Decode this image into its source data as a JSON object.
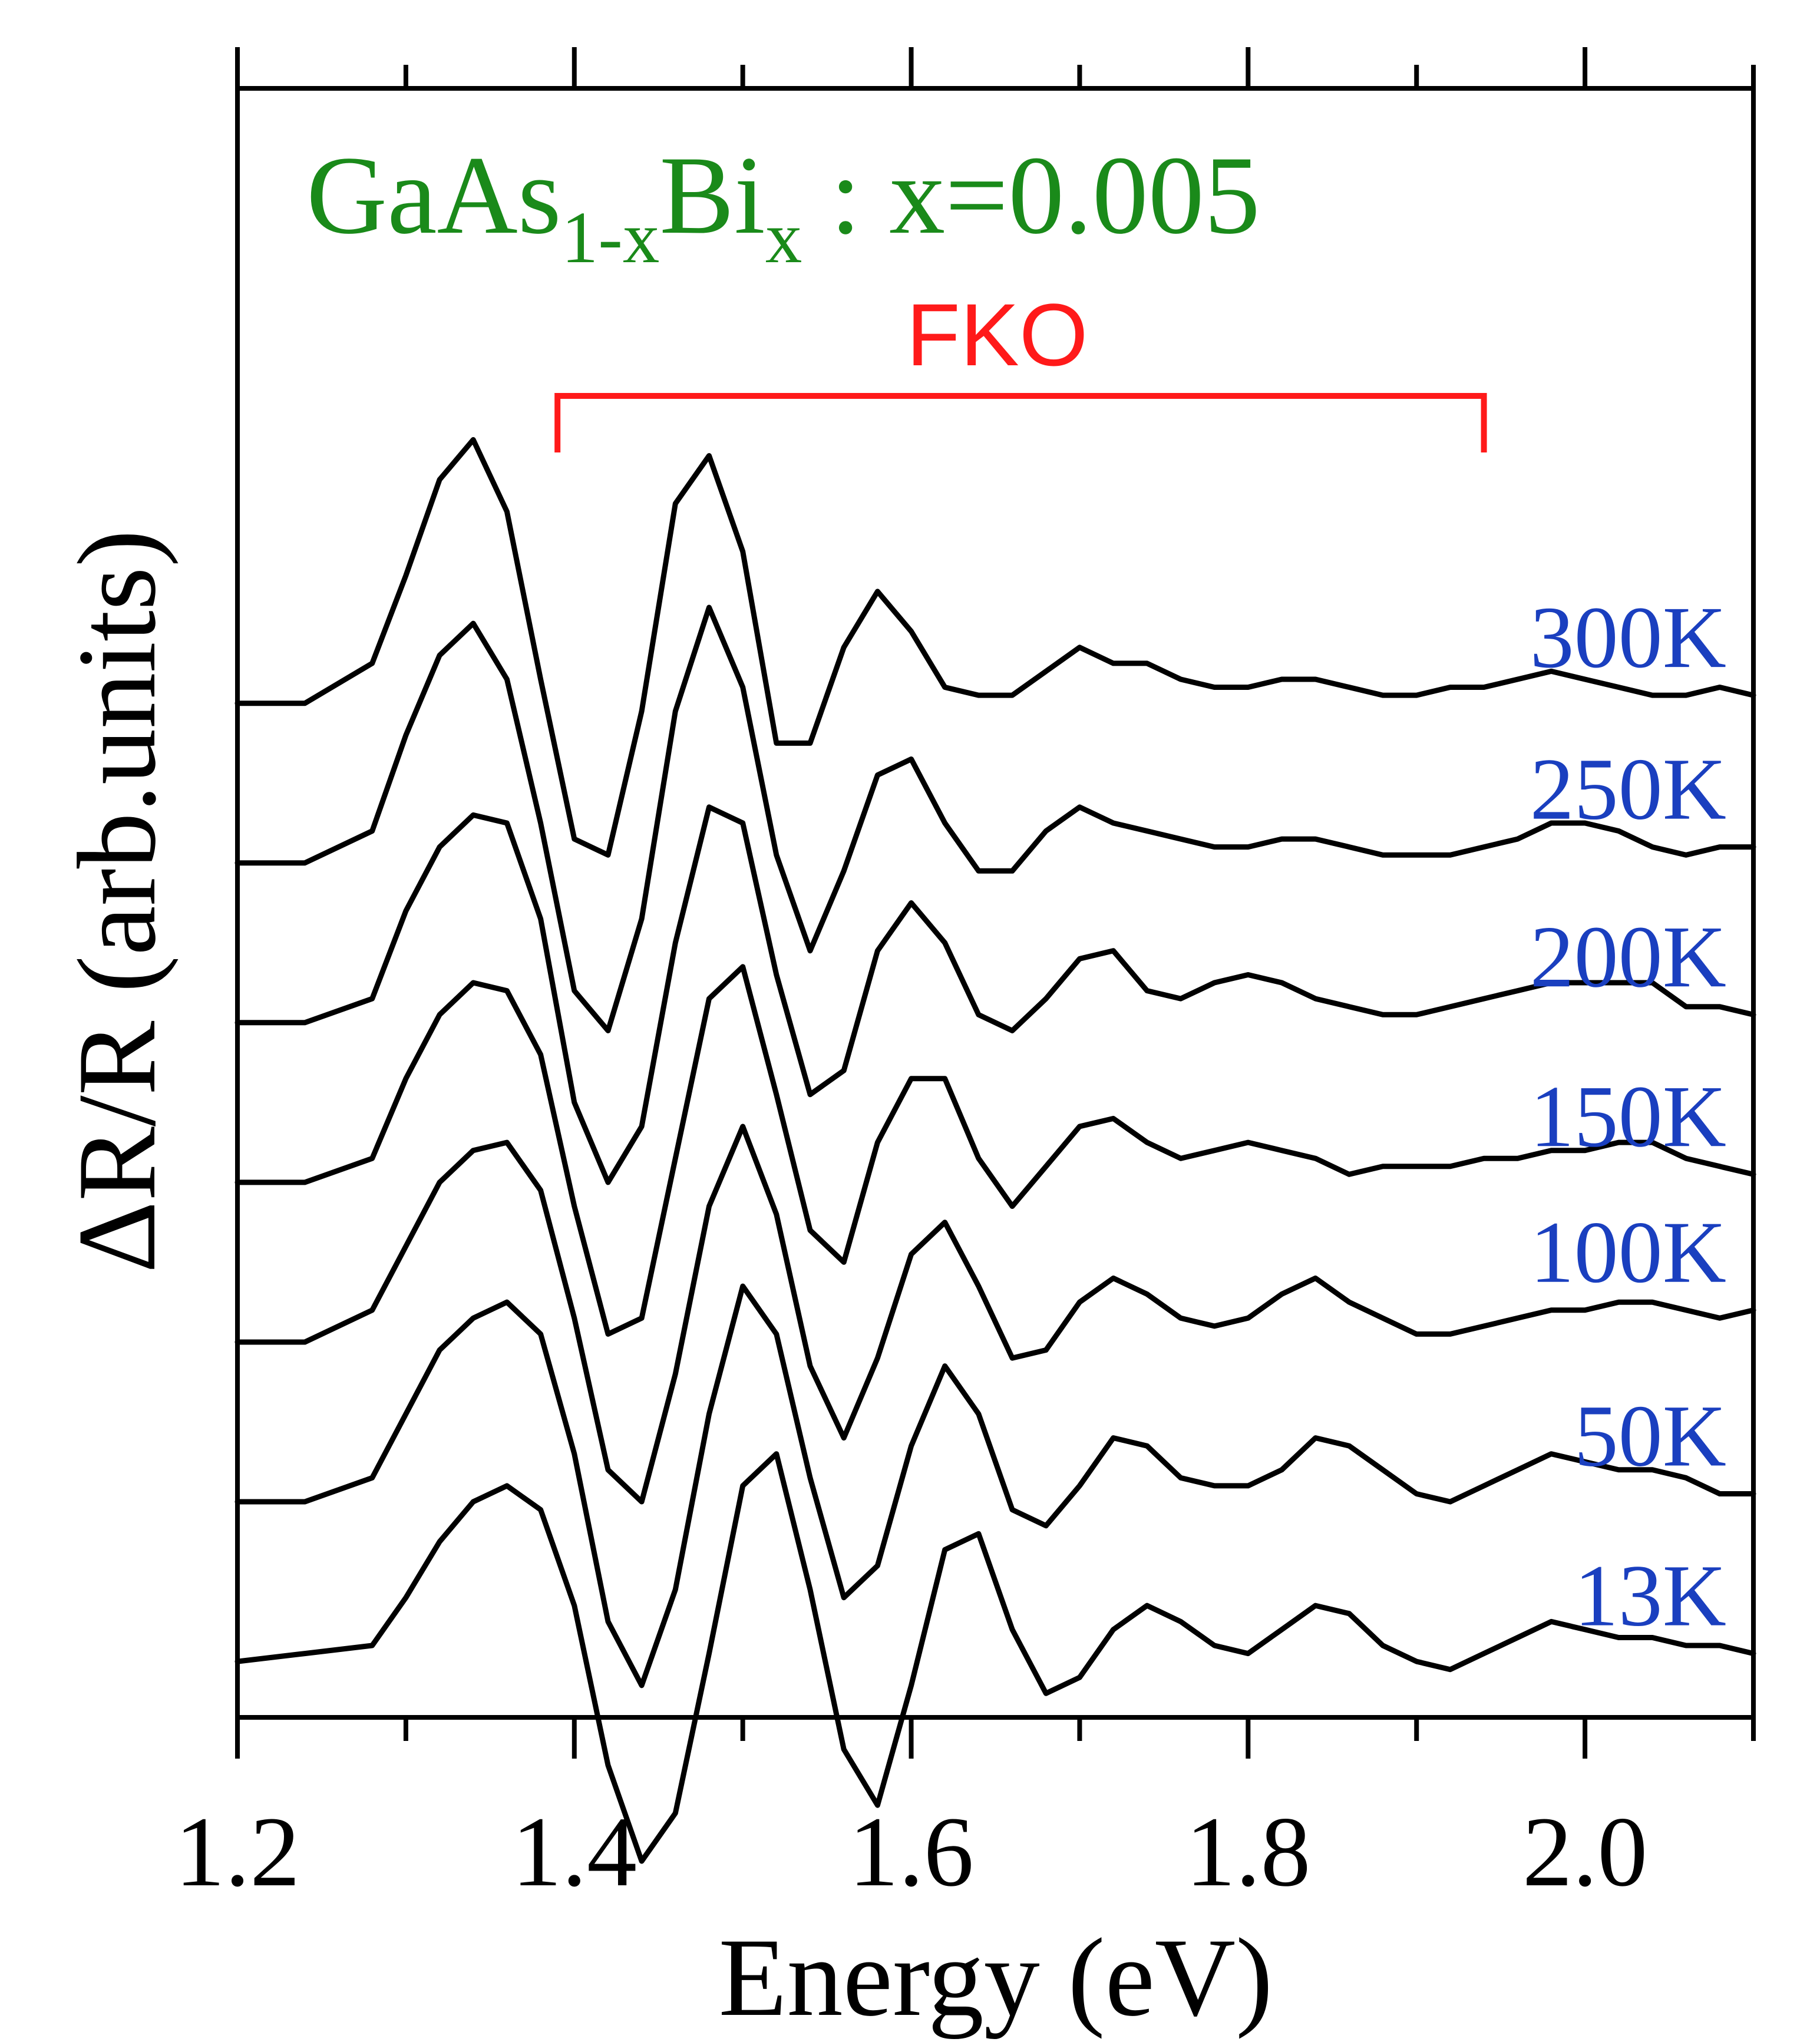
{
  "chart_data": {
    "type": "line",
    "title_parts": {
      "base1": "GaAs",
      "sub1": "1-x",
      "base2": "Bi",
      "sub2": "x",
      "rest": " : x=0.005"
    },
    "title_color": "#1a8a1a",
    "annotation": {
      "label": "FKO",
      "color": "#ff1a1a",
      "x_start": 1.39,
      "x_end": 1.94
    },
    "xlabel": "Energy (eV)",
    "ylabel": "ΔR/R (arb.units)",
    "xlim": [
      1.2,
      2.1
    ],
    "ylim": [
      -6.4,
      3.8
    ],
    "x_ticks": [
      1.2,
      1.4,
      1.6,
      1.8,
      2.0
    ],
    "x_tick_labels": [
      "1.2",
      "1.4",
      "1.6",
      "1.8",
      "2.0"
    ],
    "y_ticks_shown": false,
    "grid": false,
    "series_label_color": "#1a3fbf",
    "line_color": "#000000",
    "x": [
      1.2,
      1.24,
      1.28,
      1.3,
      1.32,
      1.34,
      1.36,
      1.38,
      1.4,
      1.42,
      1.44,
      1.46,
      1.48,
      1.5,
      1.52,
      1.54,
      1.56,
      1.58,
      1.6,
      1.62,
      1.64,
      1.66,
      1.68,
      1.7,
      1.72,
      1.74,
      1.76,
      1.78,
      1.8,
      1.82,
      1.84,
      1.86,
      1.88,
      1.9,
      1.92,
      1.94,
      1.96,
      1.98,
      2.0,
      2.02,
      2.04,
      2.06,
      2.08,
      2.1
    ],
    "series": [
      {
        "name": "300K",
        "values": [
          -0.05,
          -0.05,
          0.2,
          0.75,
          1.35,
          1.6,
          1.15,
          0.1,
          -0.9,
          -1.0,
          -0.1,
          1.2,
          1.5,
          0.9,
          -0.3,
          -0.3,
          0.3,
          0.65,
          0.4,
          0.05,
          0.0,
          0.0,
          0.15,
          0.3,
          0.2,
          0.2,
          0.1,
          0.05,
          0.05,
          0.1,
          0.1,
          0.05,
          0.0,
          0.0,
          0.05,
          0.05,
          0.1,
          0.15,
          0.1,
          0.05,
          0.0,
          0.0,
          0.05,
          0.0
        ]
      },
      {
        "name": "250K",
        "values": [
          -0.05,
          -0.05,
          0.15,
          0.75,
          1.25,
          1.45,
          1.1,
          0.2,
          -0.85,
          -1.1,
          -0.4,
          0.9,
          1.55,
          1.05,
          0.0,
          -0.6,
          -0.1,
          0.5,
          0.6,
          0.2,
          -0.1,
          -0.1,
          0.15,
          0.3,
          0.2,
          0.15,
          0.1,
          0.05,
          0.05,
          0.1,
          0.1,
          0.05,
          0.0,
          0.0,
          0.0,
          0.05,
          0.1,
          0.2,
          0.2,
          0.15,
          0.05,
          0.0,
          0.05,
          0.05
        ]
      },
      {
        "name": "200K",
        "values": [
          -0.05,
          -0.05,
          0.1,
          0.65,
          1.05,
          1.25,
          1.2,
          0.6,
          -0.55,
          -1.05,
          -0.7,
          0.45,
          1.3,
          1.2,
          0.25,
          -0.5,
          -0.35,
          0.4,
          0.7,
          0.45,
          0.0,
          -0.1,
          0.1,
          0.35,
          0.4,
          0.15,
          0.1,
          0.2,
          0.25,
          0.2,
          0.1,
          0.05,
          0.0,
          0.0,
          0.05,
          0.1,
          0.15,
          0.2,
          0.2,
          0.2,
          0.2,
          0.05,
          0.05,
          0.0
        ]
      },
      {
        "name": "150K",
        "values": [
          -0.05,
          -0.05,
          0.1,
          0.6,
          1.0,
          1.2,
          1.15,
          0.75,
          -0.2,
          -1.0,
          -0.9,
          0.1,
          1.1,
          1.3,
          0.5,
          -0.35,
          -0.55,
          0.2,
          0.6,
          0.6,
          0.1,
          -0.2,
          0.05,
          0.3,
          0.35,
          0.2,
          0.1,
          0.15,
          0.2,
          0.15,
          0.1,
          0.0,
          0.05,
          0.05,
          0.05,
          0.1,
          0.1,
          0.15,
          0.15,
          0.2,
          0.2,
          0.1,
          0.05,
          0.0
        ]
      },
      {
        "name": "100K",
        "values": [
          -0.05,
          -0.05,
          0.15,
          0.55,
          0.95,
          1.15,
          1.2,
          0.9,
          0.1,
          -0.85,
          -1.05,
          -0.25,
          0.8,
          1.3,
          0.75,
          -0.2,
          -0.65,
          -0.15,
          0.5,
          0.7,
          0.3,
          -0.15,
          -0.1,
          0.2,
          0.35,
          0.25,
          0.1,
          0.05,
          0.1,
          0.25,
          0.35,
          0.2,
          0.1,
          0.0,
          0.0,
          0.05,
          0.1,
          0.15,
          0.15,
          0.2,
          0.2,
          0.15,
          0.1,
          0.15
        ]
      },
      {
        "name": "50K",
        "values": [
          -0.05,
          -0.05,
          0.1,
          0.5,
          0.9,
          1.1,
          1.2,
          1.0,
          0.25,
          -0.8,
          -1.2,
          -0.6,
          0.5,
          1.3,
          1.0,
          0.1,
          -0.65,
          -0.45,
          0.3,
          0.8,
          0.5,
          -0.1,
          -0.2,
          0.05,
          0.35,
          0.3,
          0.1,
          0.05,
          0.05,
          0.15,
          0.35,
          0.3,
          0.15,
          0.0,
          -0.05,
          0.05,
          0.15,
          0.25,
          0.2,
          0.15,
          0.15,
          0.1,
          0.0,
          0.0
        ]
      },
      {
        "name": "13K",
        "values": [
          -0.05,
          0.0,
          0.05,
          0.35,
          0.7,
          0.95,
          1.05,
          0.9,
          0.3,
          -0.7,
          -1.3,
          -1.0,
          0.0,
          1.05,
          1.25,
          0.4,
          -0.6,
          -0.95,
          -0.2,
          0.65,
          0.75,
          0.15,
          -0.25,
          -0.15,
          0.15,
          0.3,
          0.2,
          0.05,
          0.0,
          0.15,
          0.3,
          0.25,
          0.05,
          -0.05,
          -0.1,
          0.0,
          0.1,
          0.2,
          0.15,
          0.1,
          0.1,
          0.05,
          0.05,
          0.0
        ]
      }
    ]
  }
}
